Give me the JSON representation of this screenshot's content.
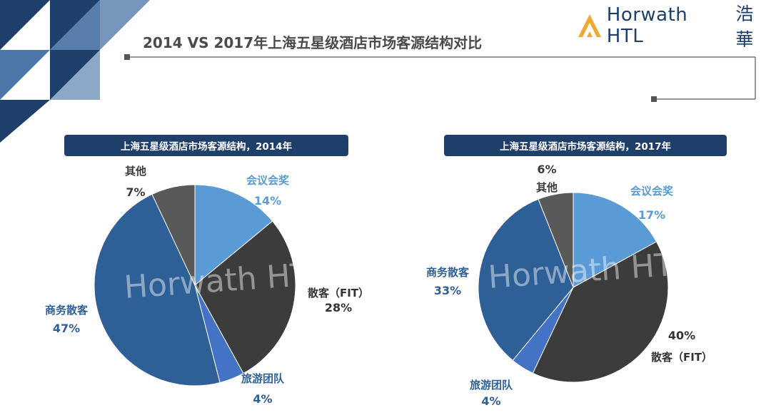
{
  "page": {
    "title": "2014 VS 2017年上海五星级酒店市场客源结构对比",
    "logo_text": "Horwath HTL",
    "logo_cn": "浩華",
    "watermark": "Horwath HTL"
  },
  "colors": {
    "navy": "#1f3f6b",
    "light_blue": "#5b9bd5",
    "dark_gray": "#3c3c3c",
    "royal_blue": "#4472c4",
    "steel_blue": "#2e5f96",
    "mid_gray": "#595959",
    "gold": "#f0a830"
  },
  "chart_data": [
    {
      "type": "pie",
      "title": "上海五星级酒店市场客源结构，2014年",
      "start_angle_deg": 0,
      "direction": "clockwise",
      "slices": [
        {
          "label": "会议会奖",
          "value": 14,
          "value_label": "14%",
          "color": "#5b9bd5"
        },
        {
          "label": "散客（FIT）",
          "value": 28,
          "value_label": "28%",
          "color": "#3c3c3c"
        },
        {
          "label": "旅游团队",
          "value": 4,
          "value_label": "4%",
          "color": "#4472c4"
        },
        {
          "label": "商务散客",
          "value": 47,
          "value_label": "47%",
          "color": "#2e5f96"
        },
        {
          "label": "其他",
          "value": 7,
          "value_label": "7%",
          "color": "#595959"
        }
      ]
    },
    {
      "type": "pie",
      "title": "上海五星级酒店市场客源结构，2017年",
      "start_angle_deg": 0,
      "direction": "clockwise",
      "slices": [
        {
          "label": "会议会奖",
          "value": 17,
          "value_label": "17%",
          "color": "#5b9bd5"
        },
        {
          "label": "散客（FIT）",
          "value": 40,
          "value_label": "40%",
          "color": "#3c3c3c"
        },
        {
          "label": "旅游团队",
          "value": 4,
          "value_label": "4%",
          "color": "#4472c4"
        },
        {
          "label": "商务散客",
          "value": 33,
          "value_label": "33%",
          "color": "#2e5f96"
        },
        {
          "label": "其他",
          "value": 6,
          "value_label": "6%",
          "color": "#595959"
        }
      ]
    }
  ]
}
